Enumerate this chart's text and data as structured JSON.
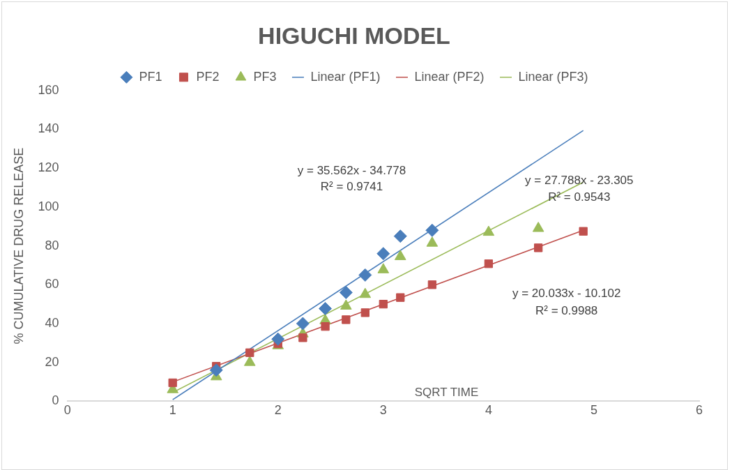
{
  "chart_data": {
    "type": "scatter",
    "title": "HIGUCHI MODEL",
    "xlabel": "SQRT TIME",
    "ylabel": "% CUMULATIVE DRUG RELEASE",
    "xlim": [
      0,
      6
    ],
    "xticks": [
      0,
      1,
      2,
      3,
      4,
      5,
      6
    ],
    "ylim": [
      0,
      160
    ],
    "yticks": [
      0,
      20,
      40,
      60,
      80,
      100,
      120,
      140,
      160
    ],
    "grid": false,
    "legend": "top",
    "series": [
      {
        "name": "PF1",
        "marker": "diamond",
        "color": "#4a7ebb",
        "x": [
          1.414,
          2,
          2.236,
          2.449,
          2.646,
          2.828,
          3,
          3.162,
          3.464
        ],
        "values": [
          16,
          32,
          40,
          47.7,
          56,
          65,
          76,
          85,
          88
        ]
      },
      {
        "name": "PF2",
        "marker": "square",
        "color": "#c0504d",
        "x": [
          1,
          1.414,
          1.732,
          2,
          2.236,
          2.449,
          2.646,
          2.828,
          3,
          3.162,
          3.464,
          4,
          4.472,
          4.899
        ],
        "values": [
          9.5,
          18,
          25,
          29.6,
          32.7,
          38.5,
          42,
          45.6,
          50,
          53.4,
          60,
          70.8,
          79,
          87.5
        ]
      },
      {
        "name": "PF3",
        "marker": "triangle",
        "color": "#9bbb59",
        "x": [
          1,
          1.414,
          1.732,
          2,
          2.236,
          2.449,
          2.646,
          2.828,
          3,
          3.162,
          3.464,
          4,
          4.472
        ],
        "values": [
          6,
          12.6,
          20,
          28.6,
          34.7,
          41.5,
          49,
          55,
          67.7,
          74.5,
          81.4,
          87,
          89
        ]
      },
      {
        "name": "Linear (PF1)",
        "type": "line",
        "marker": "none",
        "color": "#4a7ebb",
        "x": [
          1,
          4.899
        ],
        "values": [
          0.8,
          139.4
        ]
      },
      {
        "name": "Linear (PF2)",
        "type": "line",
        "marker": "none",
        "color": "#c0504d",
        "x": [
          1,
          4.899
        ],
        "values": [
          9.9,
          88
        ]
      },
      {
        "name": "Linear (PF3)",
        "type": "line",
        "marker": "none",
        "color": "#9bbb59",
        "x": [
          1,
          4.899
        ],
        "values": [
          4.5,
          112.8
        ]
      }
    ],
    "annotations": [
      "y = 35.562x - 34.778",
      "R² = 0.9741",
      "y = 27.788x - 23.305",
      "R² = 0.9543",
      "y = 20.033x - 10.102",
      "R² = 0.9988"
    ]
  }
}
